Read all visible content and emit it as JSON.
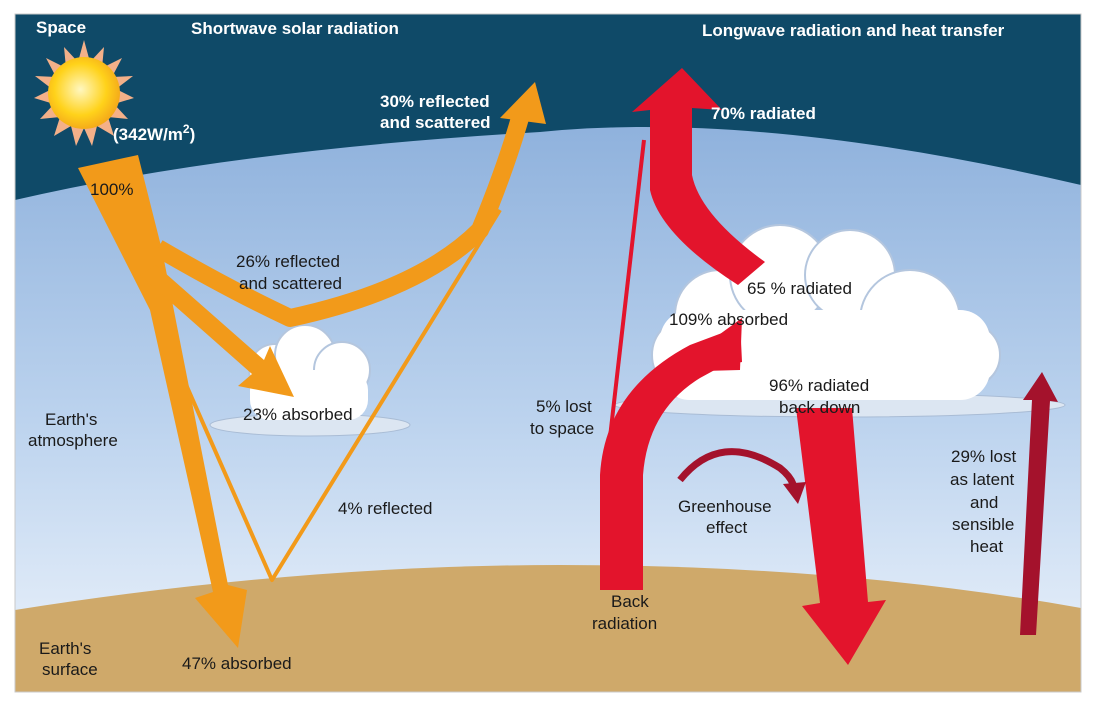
{
  "headers": {
    "space": "Space",
    "shortwave": "Shortwave solar radiation",
    "longwave": "Longwave radiation and heat transfer"
  },
  "solar_input": "(342W/m",
  "solar_input_sup": "2",
  "solar_input_close": ")",
  "labels": {
    "pct100": "100%",
    "reflected30_line1": "30% reflected",
    "reflected30_line2": "and scattered",
    "reflected26_line1": "26% reflected",
    "reflected26_line2": "and scattered",
    "absorbed23": "23% absorbed",
    "reflected4": "4% reflected",
    "absorbed47": "47% absorbed",
    "atmosphere_line1": "Earth's",
    "atmosphere_line2": "atmosphere",
    "surface_line1": "Earth's",
    "surface_line2": "surface",
    "radiated70": "70% radiated",
    "radiated65": "65 % radiated",
    "absorbed109": "109% absorbed",
    "radiated96_line1": "96% radiated",
    "radiated96_line2": "back down",
    "lost5_line1": "5% lost",
    "lost5_line2": "to space",
    "greenhouse_line1": "Greenhouse",
    "greenhouse_line2": "effect",
    "back_line1": "Back",
    "back_line2": "radiation",
    "lost29_line1": "29% lost",
    "lost29_line2": "as latent",
    "lost29_line3": "and",
    "lost29_line4": "sensible",
    "lost29_line5": "heat"
  },
  "colors": {
    "space": "#0f4a68",
    "sky_top": "#7ea5d6",
    "sky_bottom": "#e6f0fb",
    "ground": "#cfa96a",
    "solar": "#f29a1a",
    "longwave": "#e3142c",
    "latent": "#a4122c",
    "sun": "#ffd21a"
  }
}
